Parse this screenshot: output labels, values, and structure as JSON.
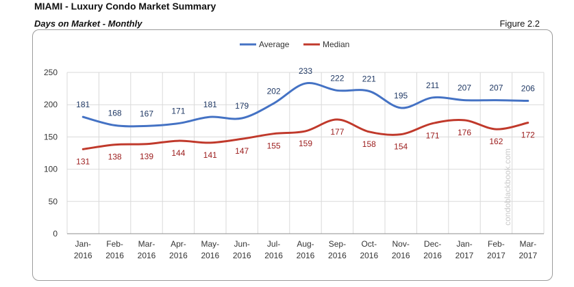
{
  "header": {
    "title": "MIAMI - Luxury Condo Market Summary",
    "subtitle": "Days on Market - Monthly",
    "figure_label": "Figure 2.2"
  },
  "watermark": "condoblackbook.com",
  "colors": {
    "average": "#4472C4",
    "median": "#C0392B",
    "grid": "#D9D9D9"
  },
  "chart_data": {
    "type": "line",
    "title": "",
    "xlabel": "",
    "ylabel": "",
    "ylim": [
      0,
      250
    ],
    "yticks": [
      0,
      50,
      100,
      150,
      200,
      250
    ],
    "grid": true,
    "legend_position": "top-center",
    "categories": [
      [
        "Jan-",
        "2016"
      ],
      [
        "Feb-",
        "2016"
      ],
      [
        "Mar-",
        "2016"
      ],
      [
        "Apr-",
        "2016"
      ],
      [
        "May-",
        "2016"
      ],
      [
        "Jun-",
        "2016"
      ],
      [
        "Jul-",
        "2016"
      ],
      [
        "Aug-",
        "2016"
      ],
      [
        "Sep-",
        "2016"
      ],
      [
        "Oct-",
        "2016"
      ],
      [
        "Nov-",
        "2016"
      ],
      [
        "Dec-",
        "2016"
      ],
      [
        "Jan-",
        "2017"
      ],
      [
        "Feb-",
        "2017"
      ],
      [
        "Mar-",
        "2017"
      ]
    ],
    "series": [
      {
        "name": "Average",
        "values": [
          181,
          168,
          167,
          171,
          181,
          179,
          202,
          233,
          222,
          221,
          195,
          211,
          207,
          207,
          206
        ]
      },
      {
        "name": "Median",
        "values": [
          131,
          138,
          139,
          144,
          141,
          147,
          155,
          159,
          177,
          158,
          154,
          171,
          176,
          162,
          172
        ]
      }
    ]
  }
}
